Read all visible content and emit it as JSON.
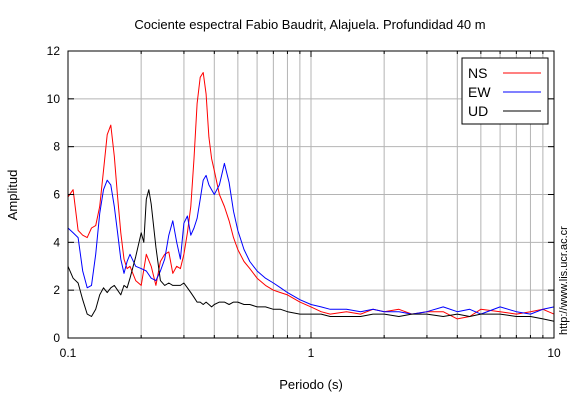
{
  "chart_data": {
    "type": "line",
    "title": "Cociente espectral Fabio Baudrit, Alajuela. Profundidad 40 m",
    "xlabel": "Periodo (s)",
    "ylabel": "Amplitud",
    "credit": "http://www.lis.ucr.ac.cr",
    "xscale": "log",
    "xlim": [
      0.1,
      10
    ],
    "ylim": [
      0,
      12
    ],
    "x_ticks": [
      0.1,
      1,
      10
    ],
    "x_tick_labels": [
      "0.1",
      "1",
      "10"
    ],
    "y_ticks": [
      0,
      2,
      4,
      6,
      8,
      10,
      12
    ],
    "y_tick_labels": [
      "0",
      "2",
      "4",
      "6",
      "8",
      "10",
      "12"
    ],
    "grid": true,
    "legend_position": "top-right",
    "series": [
      {
        "name": "NS",
        "color": "#ff0000",
        "x": [
          0.1,
          0.105,
          0.11,
          0.115,
          0.12,
          0.125,
          0.13,
          0.135,
          0.14,
          0.145,
          0.15,
          0.155,
          0.16,
          0.165,
          0.17,
          0.175,
          0.18,
          0.19,
          0.2,
          0.21,
          0.22,
          0.23,
          0.24,
          0.25,
          0.26,
          0.27,
          0.28,
          0.29,
          0.3,
          0.31,
          0.32,
          0.33,
          0.34,
          0.35,
          0.36,
          0.37,
          0.38,
          0.39,
          0.4,
          0.42,
          0.44,
          0.46,
          0.48,
          0.5,
          0.53,
          0.56,
          0.6,
          0.65,
          0.7,
          0.75,
          0.8,
          0.9,
          1.0,
          1.1,
          1.2,
          1.4,
          1.6,
          1.8,
          2.0,
          2.3,
          2.6,
          3.0,
          3.5,
          4.0,
          4.5,
          5.0,
          6.0,
          7.0,
          8.0,
          9.0,
          10.0
        ],
        "y": [
          5.9,
          6.2,
          4.5,
          4.3,
          4.2,
          4.6,
          4.7,
          5.5,
          7.0,
          8.5,
          8.9,
          7.6,
          5.9,
          4.4,
          3.3,
          2.9,
          3.0,
          2.4,
          2.2,
          3.5,
          3.0,
          2.2,
          3.2,
          3.5,
          3.6,
          2.7,
          3.0,
          2.9,
          3.5,
          4.4,
          5.5,
          7.5,
          9.8,
          10.9,
          11.1,
          10.2,
          8.4,
          7.5,
          7.0,
          6.0,
          5.5,
          4.9,
          4.2,
          3.7,
          3.2,
          2.9,
          2.5,
          2.2,
          2.0,
          1.9,
          1.8,
          1.5,
          1.3,
          1.1,
          1.0,
          1.1,
          1.0,
          1.2,
          1.1,
          1.2,
          1.0,
          1.1,
          1.1,
          0.8,
          0.9,
          1.2,
          1.1,
          1.0,
          1.1,
          1.2,
          1.0
        ]
      },
      {
        "name": "EW",
        "color": "#0000ff",
        "x": [
          0.1,
          0.105,
          0.11,
          0.115,
          0.12,
          0.125,
          0.13,
          0.135,
          0.14,
          0.145,
          0.15,
          0.155,
          0.16,
          0.165,
          0.17,
          0.175,
          0.18,
          0.19,
          0.2,
          0.21,
          0.22,
          0.23,
          0.24,
          0.25,
          0.26,
          0.27,
          0.28,
          0.29,
          0.3,
          0.31,
          0.32,
          0.33,
          0.34,
          0.35,
          0.36,
          0.37,
          0.38,
          0.39,
          0.4,
          0.42,
          0.44,
          0.46,
          0.48,
          0.5,
          0.53,
          0.56,
          0.6,
          0.65,
          0.7,
          0.75,
          0.8,
          0.9,
          1.0,
          1.1,
          1.2,
          1.4,
          1.6,
          1.8,
          2.0,
          2.3,
          2.6,
          3.0,
          3.5,
          4.0,
          4.5,
          5.0,
          6.0,
          7.0,
          8.0,
          9.0,
          10.0
        ],
        "y": [
          4.6,
          4.4,
          4.2,
          2.8,
          2.1,
          2.2,
          3.5,
          5.2,
          6.2,
          6.6,
          6.4,
          5.5,
          4.4,
          3.3,
          2.7,
          3.2,
          3.5,
          3.0,
          2.9,
          2.8,
          2.5,
          2.4,
          2.8,
          3.3,
          4.3,
          4.9,
          4.0,
          3.3,
          4.8,
          5.1,
          4.3,
          4.6,
          5.0,
          5.8,
          6.6,
          6.8,
          6.4,
          6.2,
          6.0,
          6.4,
          7.3,
          6.5,
          5.3,
          4.5,
          3.7,
          3.2,
          2.8,
          2.5,
          2.3,
          2.1,
          1.9,
          1.6,
          1.4,
          1.3,
          1.2,
          1.2,
          1.1,
          1.2,
          1.1,
          1.1,
          1.0,
          1.1,
          1.3,
          1.1,
          1.2,
          1.0,
          1.3,
          1.1,
          1.0,
          1.2,
          1.3
        ]
      },
      {
        "name": "UD",
        "color": "#000000",
        "x": [
          0.1,
          0.105,
          0.11,
          0.115,
          0.12,
          0.125,
          0.13,
          0.135,
          0.14,
          0.145,
          0.15,
          0.155,
          0.16,
          0.165,
          0.17,
          0.175,
          0.18,
          0.19,
          0.2,
          0.205,
          0.21,
          0.215,
          0.22,
          0.23,
          0.24,
          0.25,
          0.26,
          0.27,
          0.28,
          0.29,
          0.3,
          0.31,
          0.32,
          0.33,
          0.34,
          0.35,
          0.36,
          0.37,
          0.38,
          0.39,
          0.4,
          0.42,
          0.44,
          0.46,
          0.48,
          0.5,
          0.53,
          0.56,
          0.6,
          0.65,
          0.7,
          0.75,
          0.8,
          0.9,
          1.0,
          1.1,
          1.2,
          1.4,
          1.6,
          1.8,
          2.0,
          2.3,
          2.6,
          3.0,
          3.5,
          4.0,
          4.5,
          5.0,
          6.0,
          7.0,
          8.0,
          9.0,
          10.0
        ],
        "y": [
          3.0,
          2.5,
          2.3,
          1.6,
          1.0,
          0.9,
          1.2,
          1.8,
          2.1,
          1.9,
          2.1,
          2.2,
          2.0,
          1.8,
          2.2,
          2.1,
          2.5,
          3.4,
          4.4,
          4.0,
          5.8,
          6.2,
          5.6,
          3.8,
          2.4,
          2.2,
          2.3,
          2.2,
          2.2,
          2.2,
          2.3,
          2.1,
          1.9,
          1.7,
          1.5,
          1.5,
          1.4,
          1.5,
          1.4,
          1.3,
          1.4,
          1.5,
          1.5,
          1.4,
          1.5,
          1.5,
          1.4,
          1.4,
          1.3,
          1.3,
          1.2,
          1.2,
          1.1,
          1.0,
          1.0,
          1.0,
          0.9,
          0.9,
          0.9,
          1.0,
          1.0,
          0.9,
          1.0,
          1.0,
          0.9,
          1.0,
          0.9,
          1.0,
          1.0,
          0.9,
          0.9,
          0.8,
          0.7
        ]
      }
    ]
  }
}
